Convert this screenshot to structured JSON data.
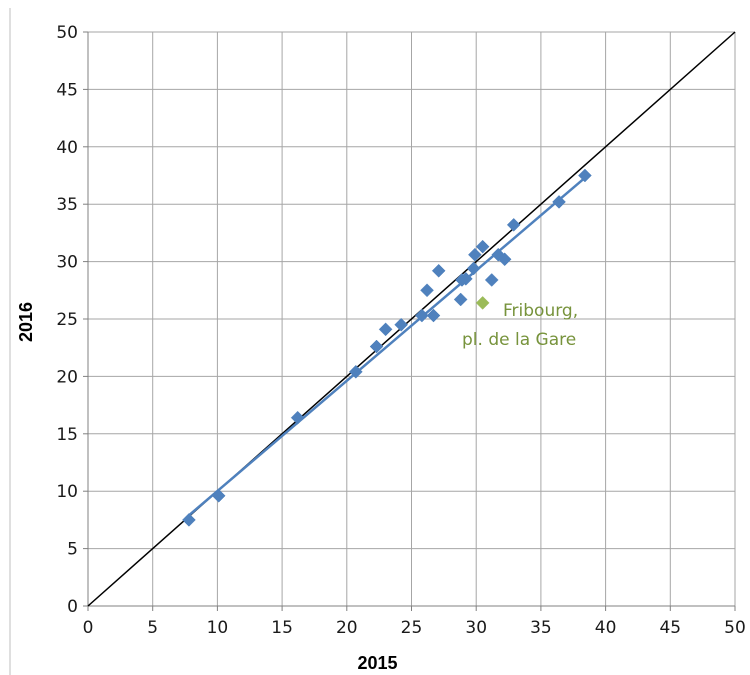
{
  "chart_data": {
    "type": "scatter",
    "title": "",
    "xlabel": "2015",
    "ylabel": "2016",
    "xlim": [
      0,
      50
    ],
    "ylim": [
      0,
      50
    ],
    "xticks": [
      0,
      5,
      10,
      15,
      20,
      25,
      30,
      35,
      40,
      45,
      50
    ],
    "yticks": [
      0,
      5,
      10,
      15,
      20,
      25,
      30,
      35,
      40,
      45,
      50
    ],
    "grid": true,
    "legend": "none",
    "series": [
      {
        "marker": "diamond",
        "color": "#4f81bd",
        "points": [
          [
            7.8,
            7.5
          ],
          [
            10.1,
            9.6
          ],
          [
            16.2,
            16.4
          ],
          [
            20.7,
            20.4
          ],
          [
            22.3,
            22.6
          ],
          [
            23.0,
            24.1
          ],
          [
            24.2,
            24.5
          ],
          [
            25.8,
            25.3
          ],
          [
            26.7,
            25.3
          ],
          [
            26.2,
            27.5
          ],
          [
            27.1,
            29.2
          ],
          [
            28.8,
            26.7
          ],
          [
            28.9,
            28.4
          ],
          [
            29.2,
            28.5
          ],
          [
            29.8,
            29.4
          ],
          [
            29.9,
            30.6
          ],
          [
            30.5,
            31.3
          ],
          [
            31.2,
            28.4
          ],
          [
            31.7,
            30.6
          ],
          [
            32.2,
            30.2
          ],
          [
            32.9,
            33.2
          ],
          [
            36.4,
            35.2
          ],
          [
            38.4,
            37.5
          ]
        ],
        "trendline": {
          "color": "#4f81bd",
          "x": [
            7.8,
            38.4
          ],
          "y": [
            7.9,
            37.3
          ]
        }
      },
      {
        "marker": "diamond",
        "color": "#9bbb59",
        "points": [
          [
            30.5,
            26.4
          ]
        ]
      }
    ],
    "reference_line": {
      "color": "#000000",
      "x": [
        0,
        50
      ],
      "y": [
        0,
        50
      ]
    },
    "annotations": [
      {
        "lines": [
          "Fribourg,",
          "pl. de la Gare"
        ],
        "color": "#77933c"
      }
    ]
  }
}
